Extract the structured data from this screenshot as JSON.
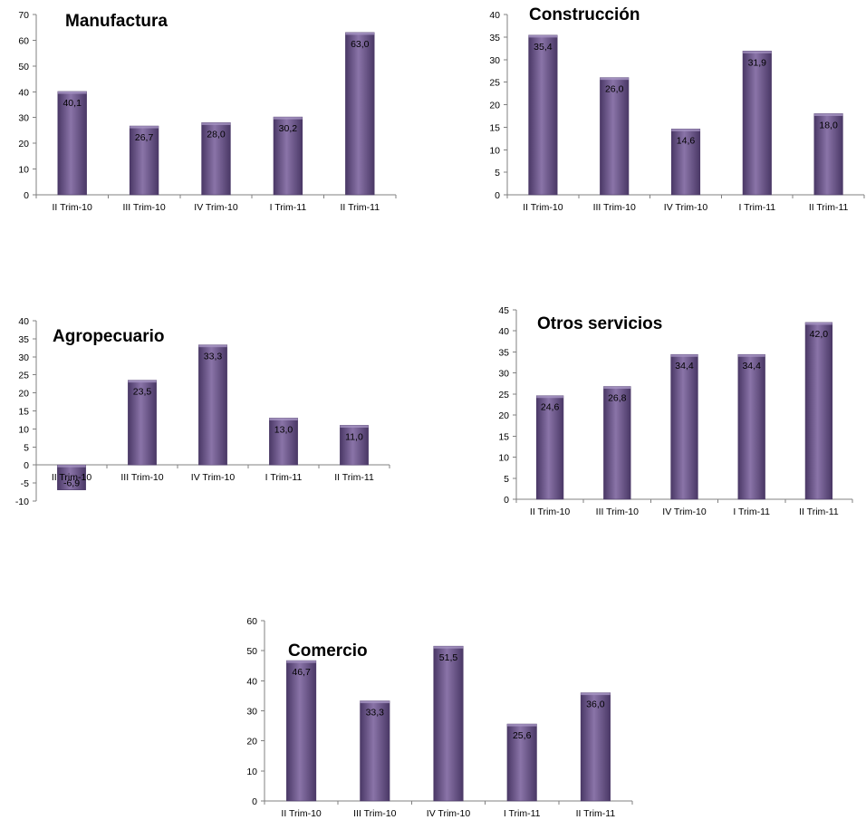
{
  "chart_data": [
    {
      "id": "manufactura",
      "type": "bar",
      "title": "Manufactura",
      "categories": [
        "II Trim-10",
        "III Trim-10",
        "IV Trim-10",
        "I Trim-11",
        "II Trim-11"
      ],
      "values": [
        40.1,
        26.7,
        28.0,
        30.2,
        63.0
      ],
      "data_labels": [
        "40,1",
        "26,7",
        "28,0",
        "30,2",
        "63,0"
      ],
      "ylim": [
        0,
        70
      ],
      "yticks": [
        0,
        10,
        20,
        30,
        40,
        50,
        60,
        70
      ],
      "xlabel": "",
      "ylabel": "",
      "grid": false
    },
    {
      "id": "construccion",
      "type": "bar",
      "title": "Construcción",
      "categories": [
        "II Trim-10",
        "III Trim-10",
        "IV Trim-10",
        "I Trim-11",
        "II Trim-11"
      ],
      "values": [
        35.4,
        26.0,
        14.6,
        31.9,
        18.0
      ],
      "data_labels": [
        "35,4",
        "26,0",
        "14,6",
        "31,9",
        "18,0"
      ],
      "ylim": [
        0,
        40
      ],
      "yticks": [
        0,
        5,
        10,
        15,
        20,
        25,
        30,
        35,
        40
      ],
      "xlabel": "",
      "ylabel": "",
      "grid": false
    },
    {
      "id": "agropecuario",
      "type": "bar",
      "title": "Agropecuario",
      "categories": [
        "II Trim-10",
        "III Trim-10",
        "IV Trim-10",
        "I Trim-11",
        "II Trim-11"
      ],
      "values": [
        -6.9,
        23.5,
        33.3,
        13.0,
        11.0
      ],
      "data_labels": [
        "-6,9",
        "23,5",
        "33,3",
        "13,0",
        "11,0"
      ],
      "ylim": [
        -10,
        40
      ],
      "yticks": [
        -10,
        -5,
        0,
        5,
        10,
        15,
        20,
        25,
        30,
        35,
        40
      ],
      "xlabel": "",
      "ylabel": "",
      "grid": false
    },
    {
      "id": "otros-servicios",
      "type": "bar",
      "title": "Otros servicios",
      "categories": [
        "II Trim-10",
        "III Trim-10",
        "IV Trim-10",
        "I Trim-11",
        "II Trim-11"
      ],
      "values": [
        24.6,
        26.8,
        34.4,
        34.4,
        42.0
      ],
      "data_labels": [
        "24,6",
        "26,8",
        "34,4",
        "34,4",
        "42,0"
      ],
      "ylim": [
        0,
        45
      ],
      "yticks": [
        0,
        5,
        10,
        15,
        20,
        25,
        30,
        35,
        40,
        45
      ],
      "xlabel": "",
      "ylabel": "",
      "grid": false
    },
    {
      "id": "comercio",
      "type": "bar",
      "title": "Comercio",
      "categories": [
        "II Trim-10",
        "III Trim-10",
        "IV Trim-10",
        "I Trim-11",
        "II Trim-11"
      ],
      "values": [
        46.7,
        33.3,
        51.5,
        25.6,
        36.0
      ],
      "data_labels": [
        "46,7",
        "33,3",
        "51,5",
        "25,6",
        "36,0"
      ],
      "ylim": [
        0,
        60
      ],
      "yticks": [
        0,
        10,
        20,
        30,
        40,
        50,
        60
      ],
      "xlabel": "",
      "ylabel": "",
      "grid": false
    }
  ],
  "colors": {
    "bar_edge": "#4a3866",
    "bar_center": "#8a74a8",
    "bar_fill": "#6b5490",
    "axis": "#808080"
  }
}
